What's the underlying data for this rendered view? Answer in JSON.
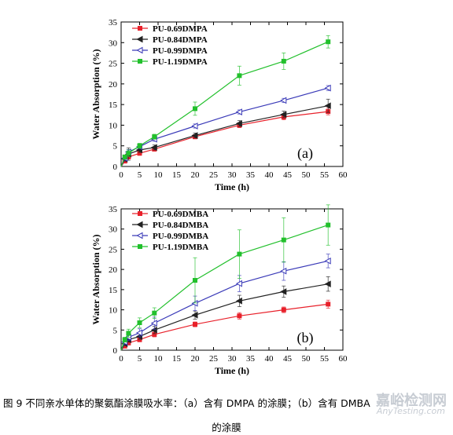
{
  "chart_data": [
    {
      "type": "line",
      "panel_label": "(a)",
      "xlabel": "Time (h)",
      "ylabel": "Water Absorption (%)",
      "xlim": [
        0,
        60
      ],
      "ylim": [
        0,
        35
      ],
      "xticks": [
        0,
        5,
        10,
        15,
        20,
        25,
        30,
        35,
        40,
        45,
        50,
        55,
        60
      ],
      "yticks": [
        0,
        5,
        10,
        15,
        20,
        25,
        30,
        35
      ],
      "legend_position": "top-left",
      "series": [
        {
          "name": "PU-0.69DMPA",
          "color": "#e8202a",
          "marker": "square",
          "x": [
            0,
            1,
            2,
            5,
            9,
            20,
            32,
            44,
            56
          ],
          "y": [
            0,
            1.3,
            2.3,
            3.2,
            4.2,
            7.2,
            10.0,
            12.0,
            13.3
          ],
          "err": [
            0,
            0.3,
            0.4,
            0.5,
            0.5,
            0.5,
            0.6,
            0.7,
            0.8
          ]
        },
        {
          "name": "PU-0.84DMPA",
          "color": "#222222",
          "marker": "triangle-left",
          "x": [
            0,
            1,
            2,
            5,
            9,
            20,
            32,
            44,
            56
          ],
          "y": [
            0,
            1.8,
            3.0,
            4.0,
            4.6,
            7.5,
            10.4,
            12.6,
            14.7
          ],
          "err": [
            0,
            0.5,
            1.5,
            0.6,
            0.6,
            0.6,
            0.7,
            0.8,
            1.6
          ]
        },
        {
          "name": "PU-0.99DMPA",
          "color": "#3a3ab8",
          "marker": "triangle-left-open",
          "x": [
            0,
            1,
            2,
            5,
            9,
            20,
            32,
            44,
            56
          ],
          "y": [
            0,
            2.0,
            3.5,
            4.8,
            6.6,
            9.8,
            13.2,
            16.0,
            19.0
          ],
          "err": [
            0,
            0.4,
            0.6,
            0.5,
            0.5,
            0.5,
            0.5,
            0.5,
            0.6
          ]
        },
        {
          "name": "PU-1.19DMPA",
          "color": "#22c02c",
          "marker": "square",
          "x": [
            0,
            1,
            2,
            5,
            9,
            20,
            32,
            44,
            56
          ],
          "y": [
            0,
            2.3,
            3.2,
            5.0,
            7.2,
            14.0,
            22.0,
            25.5,
            30.2
          ],
          "err": [
            0,
            0.5,
            0.8,
            0.6,
            0.6,
            1.6,
            2.3,
            2.0,
            1.5
          ]
        }
      ]
    },
    {
      "type": "line",
      "panel_label": "(b)",
      "xlabel": "Time (h)",
      "ylabel": "Water Absorption (%)",
      "xlim": [
        0,
        60
      ],
      "ylim": [
        0,
        35
      ],
      "xticks": [
        0,
        5,
        10,
        15,
        20,
        25,
        30,
        35,
        40,
        45,
        50,
        55,
        60
      ],
      "yticks": [
        0,
        5,
        10,
        15,
        20,
        25,
        30,
        35
      ],
      "legend_position": "top-left",
      "series": [
        {
          "name": "PU-0.69DMBA",
          "color": "#e8202a",
          "marker": "square",
          "x": [
            0,
            1,
            2,
            5,
            9,
            20,
            32,
            44,
            56
          ],
          "y": [
            0,
            1.0,
            1.8,
            2.6,
            3.9,
            6.4,
            8.5,
            10.0,
            11.4
          ],
          "err": [
            0,
            0.3,
            0.5,
            0.5,
            0.6,
            0.6,
            0.8,
            0.7,
            1.0
          ]
        },
        {
          "name": "PU-0.84DMBA",
          "color": "#222222",
          "marker": "triangle-left",
          "x": [
            0,
            1,
            2,
            5,
            9,
            20,
            32,
            44,
            56
          ],
          "y": [
            0,
            1.6,
            2.6,
            3.4,
            5.0,
            8.7,
            12.2,
            14.5,
            16.4
          ],
          "err": [
            0,
            0.4,
            0.6,
            0.7,
            0.9,
            1.0,
            1.4,
            1.4,
            1.8
          ]
        },
        {
          "name": "PU-0.99DMBA",
          "color": "#3a3ab8",
          "marker": "triangle-left-open",
          "x": [
            0,
            1,
            2,
            5,
            9,
            20,
            32,
            44,
            56
          ],
          "y": [
            0,
            2.0,
            3.2,
            4.3,
            6.7,
            11.6,
            16.5,
            19.6,
            22.1
          ],
          "err": [
            0,
            0.5,
            0.8,
            1.0,
            1.5,
            1.8,
            2.0,
            2.3,
            1.7
          ]
        },
        {
          "name": "PU-1.19DMBA",
          "color": "#22c02c",
          "marker": "square",
          "x": [
            0,
            1,
            2,
            5,
            9,
            20,
            32,
            44,
            56
          ],
          "y": [
            0,
            2.6,
            4.2,
            6.8,
            9.2,
            17.3,
            23.8,
            27.3,
            31.0
          ],
          "err": [
            0,
            0.6,
            1.0,
            1.2,
            1.3,
            5.6,
            6.0,
            5.5,
            5.0
          ]
        }
      ]
    }
  ],
  "caption": {
    "line1": "图 9  不同亲水单体的聚氨酯涂膜吸水率：（a）含有 DMPA 的涂膜；（b）含有 DMBA",
    "line2": "的涂膜"
  },
  "watermark": {
    "cn": "嘉峪检测网",
    "en": "AnyTesting.com"
  }
}
